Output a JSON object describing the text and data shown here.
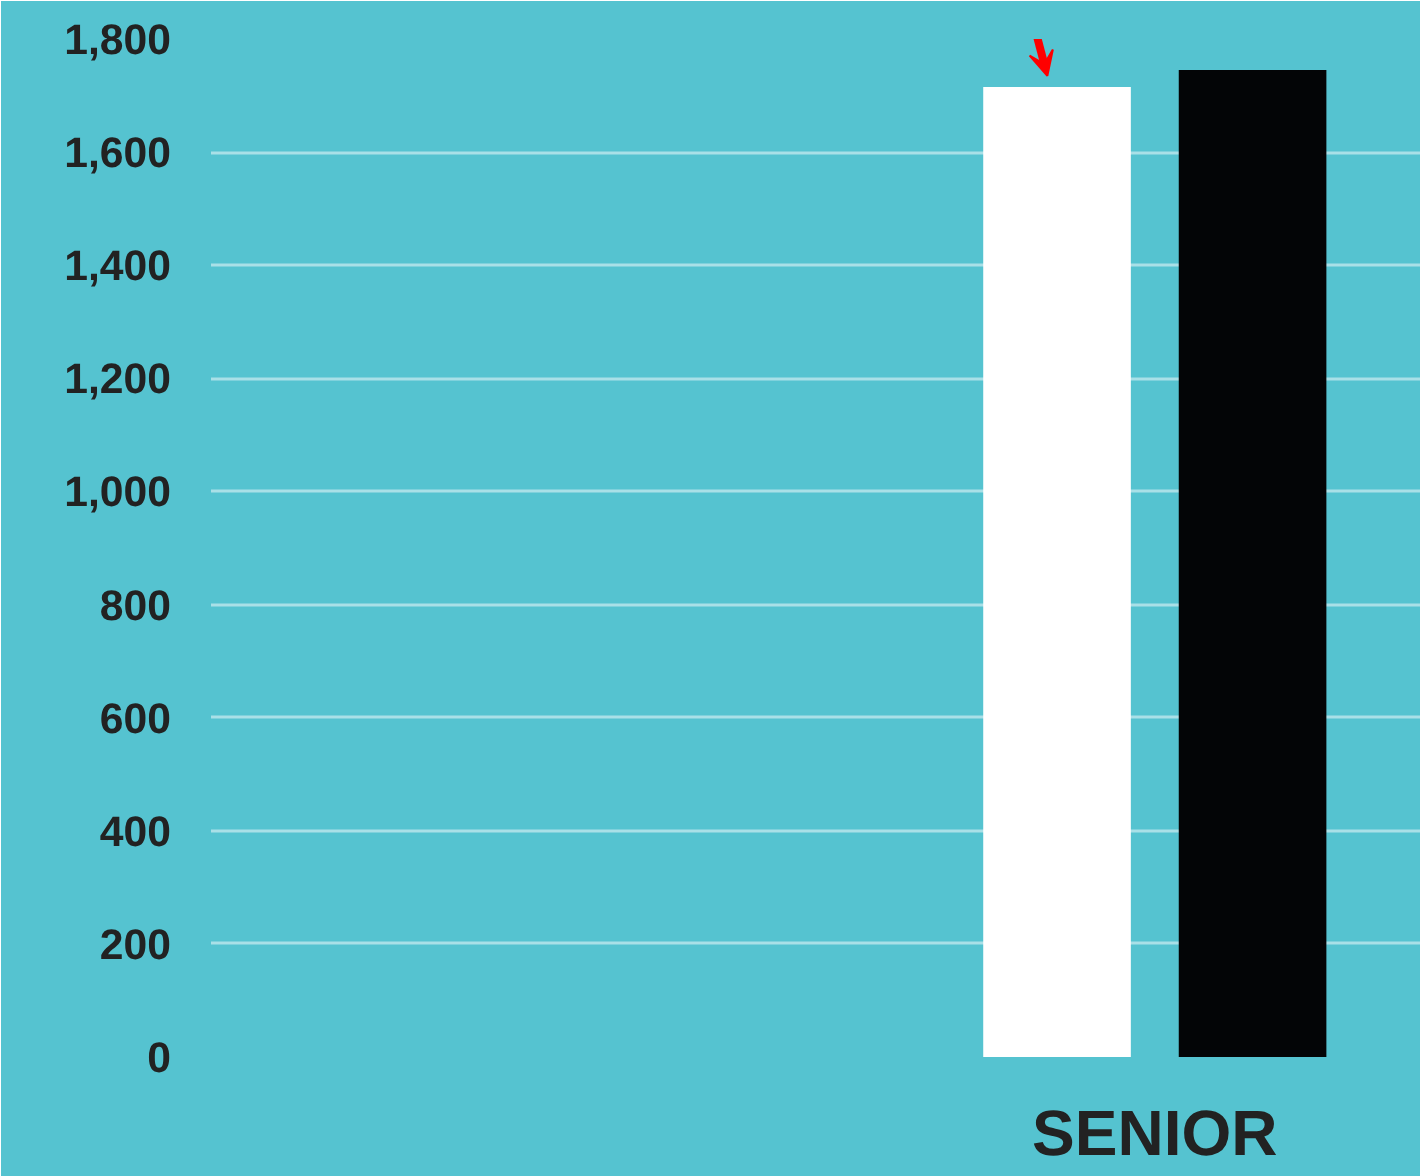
{
  "chart_data": {
    "type": "bar",
    "categories": [
      "SENIOR"
    ],
    "series": [
      {
        "color": "#ffffff",
        "values": [
          1715
        ]
      },
      {
        "color": "#030506",
        "values": [
          1745
        ]
      }
    ],
    "ylim": [
      0,
      1800
    ],
    "yticks": [
      0,
      {
        "value": 200,
        "label": "200"
      },
      {
        "value": 400,
        "label": "400"
      },
      {
        "value": 600,
        "label": "600"
      },
      {
        "value": 800,
        "label": "800"
      },
      {
        "value": 1000,
        "label": "1,000"
      },
      {
        "value": 1200,
        "label": "1,200"
      },
      {
        "value": 1400,
        "label": "1,400"
      },
      {
        "value": 1600,
        "label": "1,600"
      },
      {
        "value": 1800,
        "label": "1,800"
      }
    ],
    "grid": "y"
  }
}
